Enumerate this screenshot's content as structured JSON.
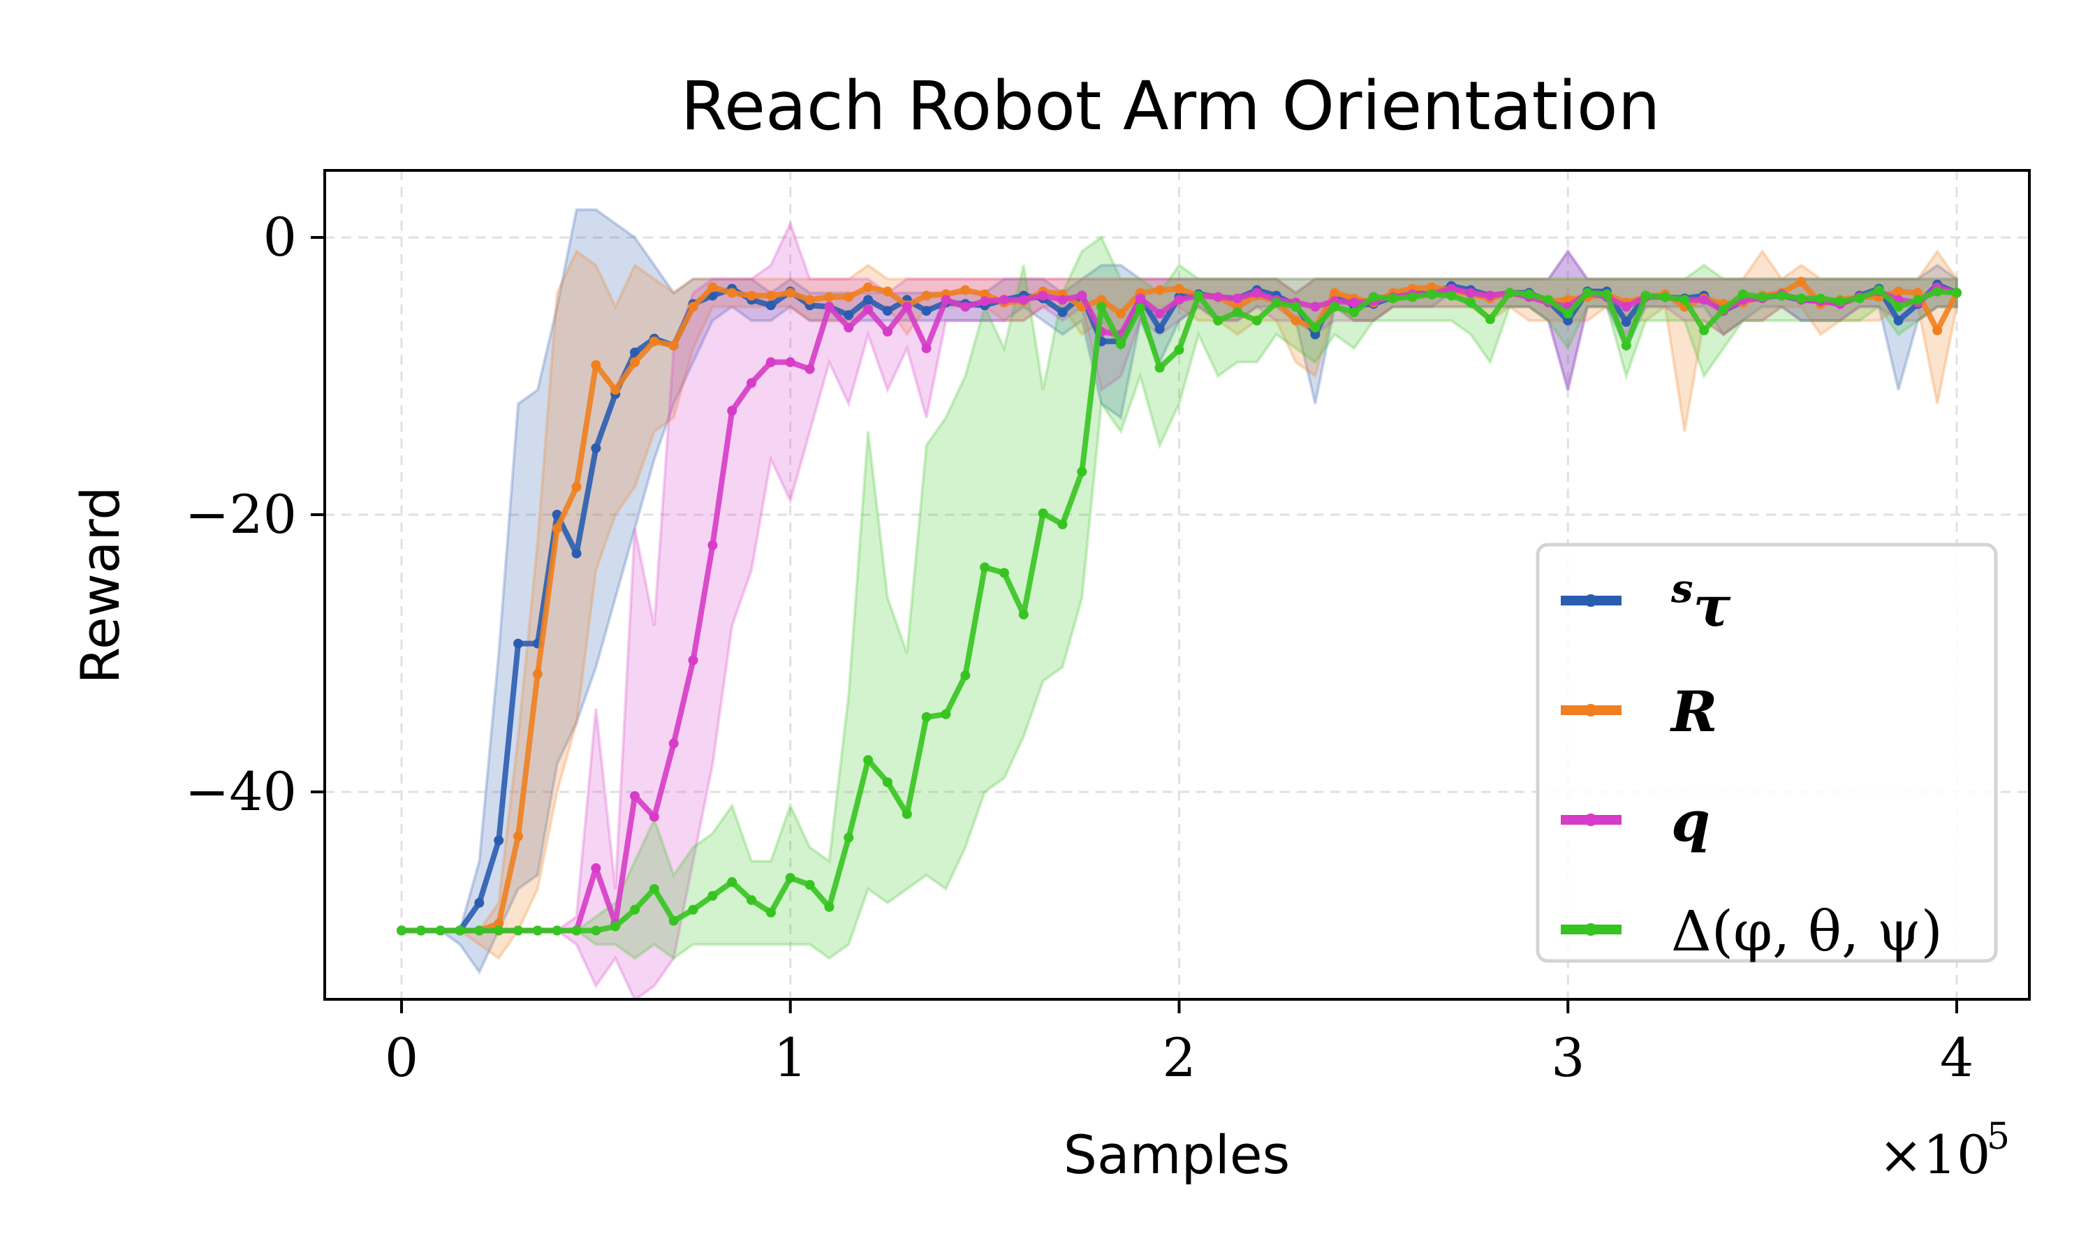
{
  "chart_data": {
    "type": "line",
    "title": "Reach Robot Arm Orientation",
    "xlabel": "Samples",
    "ylabel": "Reward",
    "x_offset_label": "×10^5",
    "xlim": [
      -0.2,
      4.18
    ],
    "ylim": [
      -55,
      5
    ],
    "xticks": [
      0,
      1,
      2,
      3,
      4
    ],
    "xtick_labels": [
      "0",
      "1",
      "2",
      "3",
      "4"
    ],
    "yticks": [
      0,
      -20,
      -40
    ],
    "ytick_labels": [
      "0",
      "−20",
      "−40"
    ],
    "grid": true,
    "legend_position": "lower right",
    "x_step": 0.05,
    "x_start": 0,
    "series": [
      {
        "name": "sτ",
        "legend_label": "τ",
        "legend_sup": "s",
        "color": "#2a5db0",
        "values": [
          -50,
          -50,
          -50,
          -50,
          -48,
          -43.5,
          -29.3,
          -29.3,
          -20,
          -22.8,
          -15.2,
          -11.3,
          -8.3,
          -7.3,
          -7.8,
          -4.8,
          -4.2,
          -3.7,
          -4.5,
          -4.9,
          -3.9,
          -4.9,
          -5.0,
          -5.6,
          -4.5,
          -5.3,
          -4.5,
          -5.3,
          -4.7,
          -4.8,
          -4.9,
          -4.5,
          -4.2,
          -4.4,
          -5.4,
          -4.2,
          -7.5,
          -7.5,
          -4.3,
          -6.6,
          -4.3,
          -4.1,
          -4.3,
          -4.4,
          -3.8,
          -4.2,
          -4.9,
          -7.0,
          -4.2,
          -4.9,
          -4.8,
          -4.3,
          -4.0,
          -4.1,
          -3.5,
          -3.8,
          -4.2,
          -4.0,
          -4.0,
          -4.6,
          -6.0,
          -3.9,
          -3.9,
          -6.1,
          -4.2,
          -4.3,
          -4.4,
          -4.2,
          -5.3,
          -4.6,
          -4.3,
          -4.2,
          -4.5,
          -4.6,
          -4.8,
          -4.2,
          -3.7,
          -6.0,
          -4.8,
          -3.4,
          -4.0
        ],
        "upper": [
          -50,
          -50,
          -50,
          -50,
          -45,
          -30,
          -12,
          -11,
          -5,
          2,
          2,
          1,
          0,
          -2,
          -4,
          -3,
          -3,
          -3,
          -3,
          -4,
          -3,
          -4,
          -4,
          -4,
          -4,
          -4,
          -4,
          -4,
          -4,
          -4,
          -4,
          -3,
          -3,
          -3,
          -4,
          -3,
          -2,
          -2,
          -3,
          -3,
          -3,
          -3,
          -3,
          -3,
          -3,
          -3,
          -4,
          -3,
          -3,
          -3,
          -3,
          -3,
          -3,
          -3,
          -3,
          -3,
          -3,
          -3,
          -3,
          -3,
          -1,
          -3,
          -3,
          -3,
          -3,
          -3,
          -3,
          -3,
          -3,
          -3,
          -3,
          -3,
          -3,
          -3,
          -3,
          -3,
          -3,
          -3,
          -3,
          -2,
          -3
        ],
        "lower": [
          -50,
          -50,
          -50,
          -51,
          -53,
          -50,
          -47,
          -46,
          -38,
          -35,
          -31,
          -26,
          -21,
          -16,
          -12,
          -9,
          -6,
          -5,
          -6,
          -6,
          -5,
          -6,
          -6,
          -6,
          -6,
          -6,
          -6,
          -6,
          -6,
          -6,
          -6,
          -6,
          -5,
          -6,
          -7,
          -6,
          -12,
          -13,
          -6,
          -9,
          -6,
          -5,
          -6,
          -6,
          -5,
          -5,
          -6,
          -12,
          -5,
          -6,
          -6,
          -5,
          -5,
          -5,
          -4,
          -5,
          -5,
          -5,
          -5,
          -6,
          -11,
          -5,
          -5,
          -8,
          -5,
          -5,
          -5,
          -5,
          -7,
          -6,
          -5,
          -5,
          -6,
          -6,
          -6,
          -5,
          -5,
          -11,
          -6,
          -5,
          -5
        ]
      },
      {
        "name": "R",
        "legend_label": "R",
        "color": "#f07f20",
        "values": [
          -50,
          -50,
          -50,
          -50,
          -50,
          -49.5,
          -43.2,
          -31.5,
          -21,
          -18,
          -9.2,
          -11,
          -9,
          -7.5,
          -7.8,
          -5,
          -3.6,
          -4,
          -4.2,
          -4.2,
          -4.0,
          -4.5,
          -4.3,
          -4.3,
          -3.6,
          -3.9,
          -4.9,
          -4.2,
          -4.1,
          -3.8,
          -4.1,
          -4.7,
          -4.6,
          -3.9,
          -4.1,
          -5.0,
          -4.5,
          -5.5,
          -4.0,
          -3.8,
          -3.7,
          -4.2,
          -4.3,
          -5.0,
          -4.2,
          -4.6,
          -6.0,
          -6.5,
          -4.0,
          -4.4,
          -4.7,
          -4.0,
          -3.7,
          -3.6,
          -3.8,
          -4.1,
          -4.4,
          -4.0,
          -4.2,
          -4.6,
          -4.5,
          -4.3,
          -4.1,
          -4.7,
          -4.3,
          -4.1,
          -5.0,
          -4.4,
          -4.8,
          -4.7,
          -4.2,
          -4.0,
          -3.2,
          -4.8,
          -4.5,
          -4.3,
          -4.3,
          -3.9,
          -4.0,
          -6.7,
          -4.0
        ],
        "upper": [
          -50,
          -50,
          -50,
          -50,
          -50,
          -48,
          -36,
          -22,
          -4,
          -1,
          -2,
          -5,
          -2,
          -3,
          -4,
          -3,
          -3,
          -3,
          -3,
          -3,
          -3,
          -3,
          -3,
          -3,
          -2,
          -3,
          -3,
          -3,
          -3,
          -3,
          -3,
          -3,
          -3,
          -3,
          -3,
          -3,
          -3,
          -3,
          -3,
          -3,
          -3,
          -3,
          -3,
          -3,
          -3,
          -3,
          -4,
          -3,
          -3,
          -3,
          -3,
          -3,
          -3,
          -3,
          -3,
          -3,
          -3,
          -3,
          -3,
          -3,
          -3,
          -3,
          -3,
          -3,
          -3,
          -3,
          -3,
          -3,
          -3,
          -3,
          -1,
          -3,
          -2,
          -3,
          -3,
          -3,
          -3,
          -3,
          -3,
          -1,
          -3
        ],
        "lower": [
          -50,
          -50,
          -50,
          -50,
          -51,
          -52,
          -50,
          -47,
          -40,
          -35,
          -24,
          -20,
          -18,
          -14,
          -13,
          -8,
          -5,
          -5,
          -5,
          -5,
          -5,
          -6,
          -6,
          -6,
          -5,
          -5,
          -7,
          -5,
          -5,
          -5,
          -5,
          -6,
          -6,
          -5,
          -5,
          -7,
          -6,
          -8,
          -5,
          -5,
          -5,
          -6,
          -6,
          -7,
          -6,
          -6,
          -9,
          -10,
          -5,
          -6,
          -6,
          -5,
          -5,
          -5,
          -5,
          -5,
          -6,
          -5,
          -6,
          -6,
          -6,
          -6,
          -5,
          -6,
          -6,
          -5,
          -14,
          -6,
          -7,
          -6,
          -6,
          -5,
          -5,
          -7,
          -6,
          -6,
          -6,
          -5,
          -5,
          -12,
          -5
        ]
      },
      {
        "name": "q",
        "legend_label": "q",
        "color": "#d63cc7",
        "values": [
          -50,
          -50,
          -50,
          -50,
          -50,
          -50,
          -50,
          -50,
          -50,
          -50,
          -45.5,
          -49.5,
          -40.3,
          -41.8,
          -36.5,
          -30.5,
          -22.2,
          -12.5,
          -10.5,
          -9,
          -9,
          -9.5,
          -5,
          -6.5,
          -5.2,
          -6.8,
          -5,
          -8,
          -4.5,
          -5.0,
          -4.6,
          -4.5,
          -4.5,
          -4.2,
          -4.5,
          -4.2,
          -6.8,
          -7.0,
          -4.4,
          -5.5,
          -4.5,
          -4.2,
          -4.3,
          -4.4,
          -4.0,
          -4.5,
          -4.7,
          -5.0,
          -4.6,
          -4.7,
          -4.6,
          -4.3,
          -4.1,
          -4.1,
          -3.7,
          -4.0,
          -4.2,
          -4.0,
          -4.3,
          -4.7,
          -5.0,
          -4.0,
          -4.3,
          -5.0,
          -4.3,
          -4.3,
          -4.5,
          -4.5,
          -5.3,
          -4.5,
          -4.4,
          -4.1,
          -4.5,
          -4.6,
          -4.8,
          -4.3,
          -3.9,
          -4.5,
          -4.7,
          -3.6,
          -4.0
        ],
        "upper": [
          -50,
          -50,
          -50,
          -50,
          -50,
          -50,
          -50,
          -50,
          -50,
          -49,
          -34,
          -47,
          -21,
          -28,
          -8,
          -4,
          -3,
          -3,
          -3,
          -2,
          1,
          -3,
          -3,
          -3,
          -3,
          -4,
          -3,
          -3,
          -3,
          -3,
          -3,
          -3,
          -3,
          -3,
          -3,
          -3,
          -3,
          -3,
          -3,
          -3,
          -3,
          -3,
          -3,
          -3,
          -3,
          -3,
          -3,
          -3,
          -3,
          -3,
          -3,
          -3,
          -3,
          -3,
          -3,
          -3,
          -3,
          -3,
          -3,
          -3,
          -1,
          -3,
          -3,
          -3,
          -3,
          -3,
          -3,
          -3,
          -3,
          -3,
          -3,
          -3,
          -3,
          -3,
          -3,
          -3,
          -3,
          -3,
          -3,
          -3,
          -3
        ],
        "lower": [
          -50,
          -50,
          -50,
          -50,
          -50,
          -50,
          -50,
          -50,
          -50,
          -51,
          -54,
          -52,
          -55,
          -54,
          -52,
          -45,
          -38,
          -28,
          -24,
          -16,
          -19,
          -14,
          -9,
          -12,
          -7,
          -11,
          -8,
          -13,
          -6,
          -6,
          -6,
          -6,
          -6,
          -5,
          -6,
          -5,
          -11,
          -10,
          -6,
          -7,
          -6,
          -5,
          -6,
          -6,
          -5,
          -6,
          -6,
          -7,
          -6,
          -6,
          -6,
          -5,
          -5,
          -5,
          -5,
          -5,
          -5,
          -5,
          -5,
          -6,
          -11,
          -5,
          -5,
          -7,
          -5,
          -5,
          -6,
          -6,
          -7,
          -6,
          -6,
          -5,
          -6,
          -6,
          -6,
          -5,
          -5,
          -6,
          -6,
          -5,
          -5
        ]
      },
      {
        "name": "Δ(φ, θ, ψ)",
        "legend_label": "Δ(φ, θ, ψ)",
        "color": "#36c420",
        "values": [
          -50,
          -50,
          -50,
          -50,
          -50,
          -50,
          -50,
          -50,
          -50,
          -50,
          -50,
          -49.7,
          -48.5,
          -47,
          -49.3,
          -48.5,
          -47.5,
          -46.5,
          -47.8,
          -48.7,
          -46.2,
          -46.7,
          -48.3,
          -43.3,
          -37.7,
          -39.3,
          -41.6,
          -34.6,
          -34.4,
          -31.6,
          -23.8,
          -24.2,
          -27.2,
          -19.9,
          -20.7,
          -16.9,
          -5,
          -7.7,
          -5.1,
          -9.4,
          -8.1,
          -4.2,
          -6.0,
          -5.4,
          -6.0,
          -4.7,
          -5.0,
          -6.5,
          -5.0,
          -5.4,
          -4.3,
          -4.4,
          -4.3,
          -4.1,
          -4.2,
          -4.7,
          -5.9,
          -4.0,
          -4.1,
          -4.5,
          -5.5,
          -4.0,
          -4.1,
          -7.8,
          -4.2,
          -4.3,
          -4.5,
          -6.7,
          -5.2,
          -4.1,
          -4.3,
          -4.2,
          -4.4,
          -4.4,
          -4.6,
          -4.4,
          -3.8,
          -5.0,
          -4.5,
          -3.9,
          -4.0
        ],
        "upper": [
          -50,
          -50,
          -50,
          -50,
          -50,
          -50,
          -50,
          -50,
          -50,
          -50,
          -49,
          -48,
          -45,
          -42,
          -46,
          -44,
          -43,
          -41,
          -45,
          -45,
          -41,
          -44,
          -45,
          -33,
          -14,
          -26,
          -30,
          -15,
          -13,
          -10,
          -5,
          -8,
          -2,
          -11,
          -4,
          -1,
          0,
          -3,
          -3,
          -4,
          -2,
          -3,
          -3,
          -3,
          -3,
          -3,
          -3,
          -3,
          -3,
          -3,
          -3,
          -3,
          -3,
          -3,
          -3,
          -3,
          -3,
          -3,
          -3,
          -3,
          -3,
          -3,
          -3,
          -3,
          -3,
          -3,
          -3,
          -2,
          -3,
          -3,
          -3,
          -3,
          -3,
          -3,
          -3,
          -3,
          -3,
          -3,
          -3,
          -3,
          -3
        ],
        "lower": [
          -50,
          -50,
          -50,
          -50,
          -50,
          -50,
          -50,
          -50,
          -50,
          -50,
          -51,
          -51,
          -52,
          -51,
          -52,
          -51,
          -51,
          -51,
          -51,
          -51,
          -51,
          -51,
          -52,
          -51,
          -47,
          -48,
          -47,
          -46,
          -47,
          -44,
          -40,
          -39,
          -36,
          -32,
          -31,
          -26,
          -12,
          -14,
          -10,
          -15,
          -12,
          -7,
          -10,
          -9,
          -9,
          -7,
          -8,
          -9,
          -7,
          -8,
          -6,
          -6,
          -6,
          -6,
          -6,
          -7,
          -9,
          -5,
          -5,
          -6,
          -8,
          -5,
          -5,
          -10,
          -6,
          -6,
          -6,
          -10,
          -8,
          -6,
          -6,
          -6,
          -6,
          -6,
          -6,
          -6,
          -5,
          -7,
          -6,
          -5,
          -5
        ]
      }
    ]
  }
}
